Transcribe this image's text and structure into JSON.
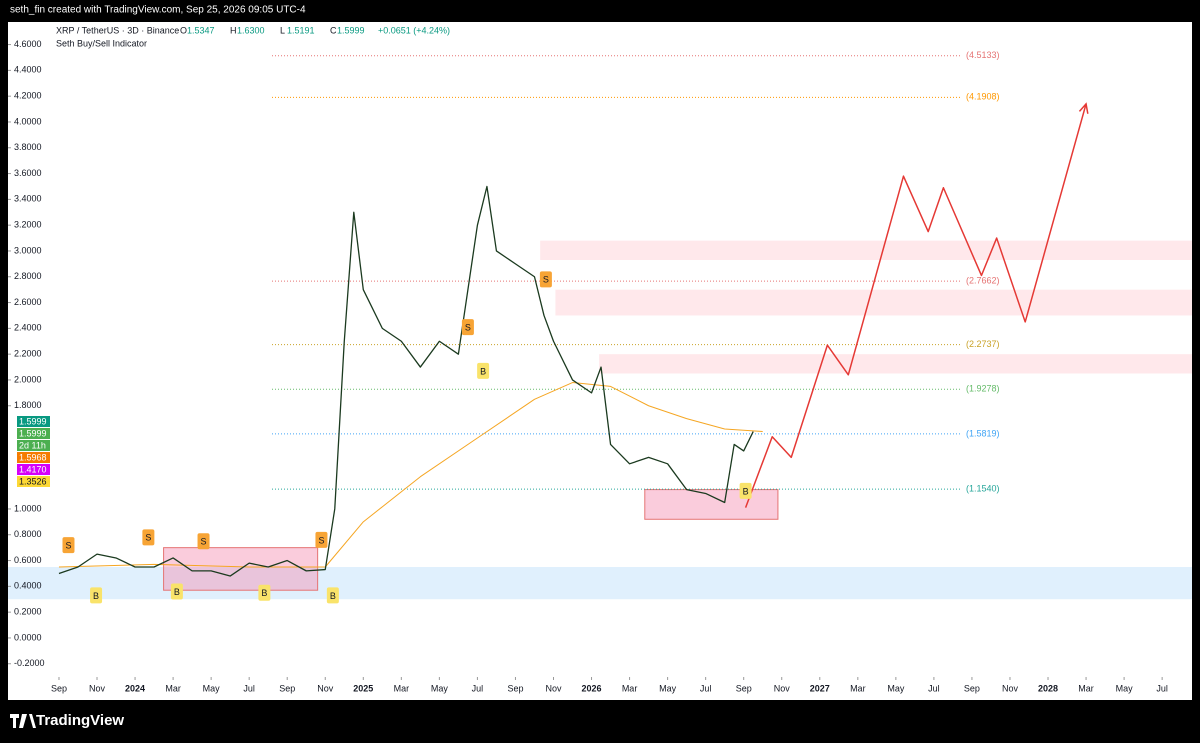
{
  "header": {
    "credit": "seth_fin created with TradingView.com, Sep 25, 2026 09:05 UTC-4"
  },
  "footer": {
    "brand": "TradingView"
  },
  "chart_data": {
    "type": "line",
    "symbol": "XRP / TetherUS · 3D · Binance",
    "ohlc": [
      {
        "label": "O",
        "value": "1.5347"
      },
      {
        "label": "H",
        "value": "1.6300"
      },
      {
        "label": "L",
        "value": "1.5191"
      },
      {
        "label": "C",
        "value": "1.5999"
      }
    ],
    "change": "+0.0651 (+4.24%)",
    "indicator": "Seth Buy/Sell Indicator",
    "price_badges": [
      {
        "label": "1.5999",
        "color": "#089981"
      },
      {
        "label": "1.5999",
        "color": "#4caf50"
      },
      {
        "label": "2d 11h",
        "color": "#4caf50"
      },
      {
        "label": "1.5968",
        "color": "#f57c00"
      },
      {
        "label": "1.4170",
        "color": "#d500f9"
      },
      {
        "label": "1.3526",
        "color": "#fdd835"
      }
    ],
    "xlim": [
      -2.68,
      59.57
    ],
    "ylim": [
      -0.326,
      4.775
    ],
    "xticks": [
      {
        "value": 0,
        "label": "Sep"
      },
      {
        "value": 2,
        "label": "Nov"
      },
      {
        "value": 4,
        "label": "2024"
      },
      {
        "value": 6,
        "label": "Mar"
      },
      {
        "value": 8,
        "label": "May"
      },
      {
        "value": 10,
        "label": "Jul"
      },
      {
        "value": 12,
        "label": "Sep"
      },
      {
        "value": 14,
        "label": "Nov"
      },
      {
        "value": 16,
        "label": "2025"
      },
      {
        "value": 18,
        "label": "Mar"
      },
      {
        "value": 20,
        "label": "May"
      },
      {
        "value": 22,
        "label": "Jul"
      },
      {
        "value": 24,
        "label": "Sep"
      },
      {
        "value": 26,
        "label": "Nov"
      },
      {
        "value": 28,
        "label": "2026"
      },
      {
        "value": 30,
        "label": "Mar"
      },
      {
        "value": 32,
        "label": "May"
      },
      {
        "value": 34,
        "label": "Jul"
      },
      {
        "value": 36,
        "label": "Sep"
      },
      {
        "value": 38,
        "label": "Nov"
      },
      {
        "value": 40,
        "label": "2027"
      },
      {
        "value": 42,
        "label": "Mar"
      },
      {
        "value": 44,
        "label": "May"
      },
      {
        "value": 46,
        "label": "Jul"
      },
      {
        "value": 48,
        "label": "Sep"
      },
      {
        "value": 50,
        "label": "Nov"
      },
      {
        "value": 52,
        "label": "2028"
      },
      {
        "value": 54,
        "label": "Mar"
      },
      {
        "value": 56,
        "label": "May"
      },
      {
        "value": 58,
        "label": "Jul"
      }
    ],
    "yticks": [
      {
        "value": 4.6,
        "label": "4.6000"
      },
      {
        "value": 4.4,
        "label": "4.4000"
      },
      {
        "value": 4.2,
        "label": "4.2000"
      },
      {
        "value": 4.0,
        "label": "4.0000"
      },
      {
        "value": 3.8,
        "label": "3.8000"
      },
      {
        "value": 3.6,
        "label": "3.6000"
      },
      {
        "value": 3.4,
        "label": "3.4000"
      },
      {
        "value": 3.2,
        "label": "3.2000"
      },
      {
        "value": 3.0,
        "label": "3.0000"
      },
      {
        "value": 2.8,
        "label": "2.8000"
      },
      {
        "value": 2.6,
        "label": "2.6000"
      },
      {
        "value": 2.4,
        "label": "2.4000"
      },
      {
        "value": 2.2,
        "label": "2.2000"
      },
      {
        "value": 2.0,
        "label": "2.0000"
      },
      {
        "value": 1.8,
        "label": "1.8000"
      },
      {
        "value": 1.0,
        "label": "1.0000"
      },
      {
        "value": 0.8,
        "label": "0.8000"
      },
      {
        "value": 0.6,
        "label": "0.6000"
      },
      {
        "value": 0.4,
        "label": "0.4000"
      },
      {
        "value": 0.2,
        "label": "0.2000"
      },
      {
        "value": 0,
        "label": "0.0000"
      },
      {
        "value": -0.2,
        "label": "-0.2000"
      }
    ],
    "zones": [
      {
        "x": [
          -2.68,
          59.57
        ],
        "y": [
          0.3,
          0.55
        ],
        "color": "#bbdefb"
      },
      {
        "x": [
          25.3,
          59.57
        ],
        "y": [
          2.93,
          3.08
        ],
        "color": "#ffcdd2"
      },
      {
        "x": [
          26.1,
          59.57
        ],
        "y": [
          2.5,
          2.7
        ],
        "color": "#ffcdd2"
      },
      {
        "x": [
          28.4,
          59.57
        ],
        "y": [
          2.05,
          2.2
        ],
        "color": "#ffcdd2"
      },
      {
        "x": [
          5.5,
          13.6
        ],
        "y": [
          0.37,
          0.7
        ],
        "color": "#f48fb1"
      },
      {
        "x": [
          30.8,
          37.8
        ],
        "y": [
          0.92,
          1.15
        ],
        "color": "#f48fb1"
      }
    ],
    "levels": [
      {
        "value": 4.5133,
        "label": "(4.5133)",
        "color": "#e57373"
      },
      {
        "value": 4.1908,
        "label": "(4.1908)",
        "color": "#ff9800"
      },
      {
        "value": 2.7662,
        "label": "(2.7662)",
        "color": "#e57373"
      },
      {
        "value": 2.2737,
        "label": "(2.2737)",
        "color": "#c9a227"
      },
      {
        "value": 1.9278,
        "label": "(1.9278)",
        "color": "#66bb6a"
      },
      {
        "value": 1.5819,
        "label": "(1.5819)",
        "color": "#42a5f5"
      },
      {
        "value": 1.154,
        "label": "(1.1540)",
        "color": "#26a69a"
      }
    ],
    "price": {
      "color": "#1b3a1f",
      "x": [
        0,
        1,
        2,
        3,
        4,
        5,
        6,
        7,
        8,
        9,
        10,
        11,
        12,
        13,
        14,
        14.5,
        15,
        15.5,
        16,
        17,
        18,
        19,
        20,
        21,
        22,
        22.5,
        23,
        24,
        25,
        25.5,
        26,
        27,
        28,
        28.5,
        29,
        30,
        31,
        32,
        33,
        34,
        35,
        35.5,
        36,
        36.5
      ],
      "values": [
        0.5,
        0.55,
        0.65,
        0.62,
        0.55,
        0.55,
        0.62,
        0.52,
        0.52,
        0.48,
        0.58,
        0.55,
        0.6,
        0.52,
        0.53,
        1.0,
        2.3,
        3.3,
        2.7,
        2.4,
        2.3,
        2.1,
        2.3,
        2.2,
        3.2,
        3.5,
        3.0,
        2.9,
        2.8,
        2.5,
        2.3,
        2.0,
        1.9,
        2.1,
        1.5,
        1.35,
        1.4,
        1.35,
        1.15,
        1.12,
        1.05,
        1.5,
        1.45,
        1.6
      ]
    },
    "ma": {
      "color": "#f5a623",
      "x": [
        0,
        5,
        10,
        14,
        16,
        19,
        22,
        25,
        27,
        29,
        31,
        33,
        35,
        37
      ],
      "values": [
        0.55,
        0.57,
        0.55,
        0.55,
        0.9,
        1.25,
        1.55,
        1.85,
        1.98,
        1.95,
        1.8,
        1.7,
        1.62,
        1.6
      ]
    },
    "forecast": {
      "color": "#e53935",
      "x": [
        36.1,
        37.5,
        38.5,
        40.4,
        41.5,
        44.4,
        45.7,
        46.5,
        48.5,
        49.3,
        50.8,
        54.0
      ],
      "values": [
        1.01,
        1.56,
        1.4,
        2.27,
        2.04,
        3.58,
        3.15,
        3.49,
        2.81,
        3.1,
        2.45,
        4.14
      ]
    },
    "signals": [
      {
        "label": "S",
        "x": 0.5,
        "y": 0.72
      },
      {
        "label": "S",
        "x": 4.7,
        "y": 0.78
      },
      {
        "label": "S",
        "x": 7.6,
        "y": 0.75
      },
      {
        "label": "S",
        "x": 13.8,
        "y": 0.76
      },
      {
        "label": "S",
        "x": 21.5,
        "y": 2.41
      },
      {
        "label": "S",
        "x": 25.6,
        "y": 2.78
      },
      {
        "label": "B",
        "x": 1.95,
        "y": 0.33
      },
      {
        "label": "B",
        "x": 6.2,
        "y": 0.36
      },
      {
        "label": "B",
        "x": 10.8,
        "y": 0.35
      },
      {
        "label": "B",
        "x": 14.4,
        "y": 0.33
      },
      {
        "label": "B",
        "x": 22.3,
        "y": 2.07
      },
      {
        "label": "B",
        "x": 36.1,
        "y": 1.14
      }
    ]
  }
}
